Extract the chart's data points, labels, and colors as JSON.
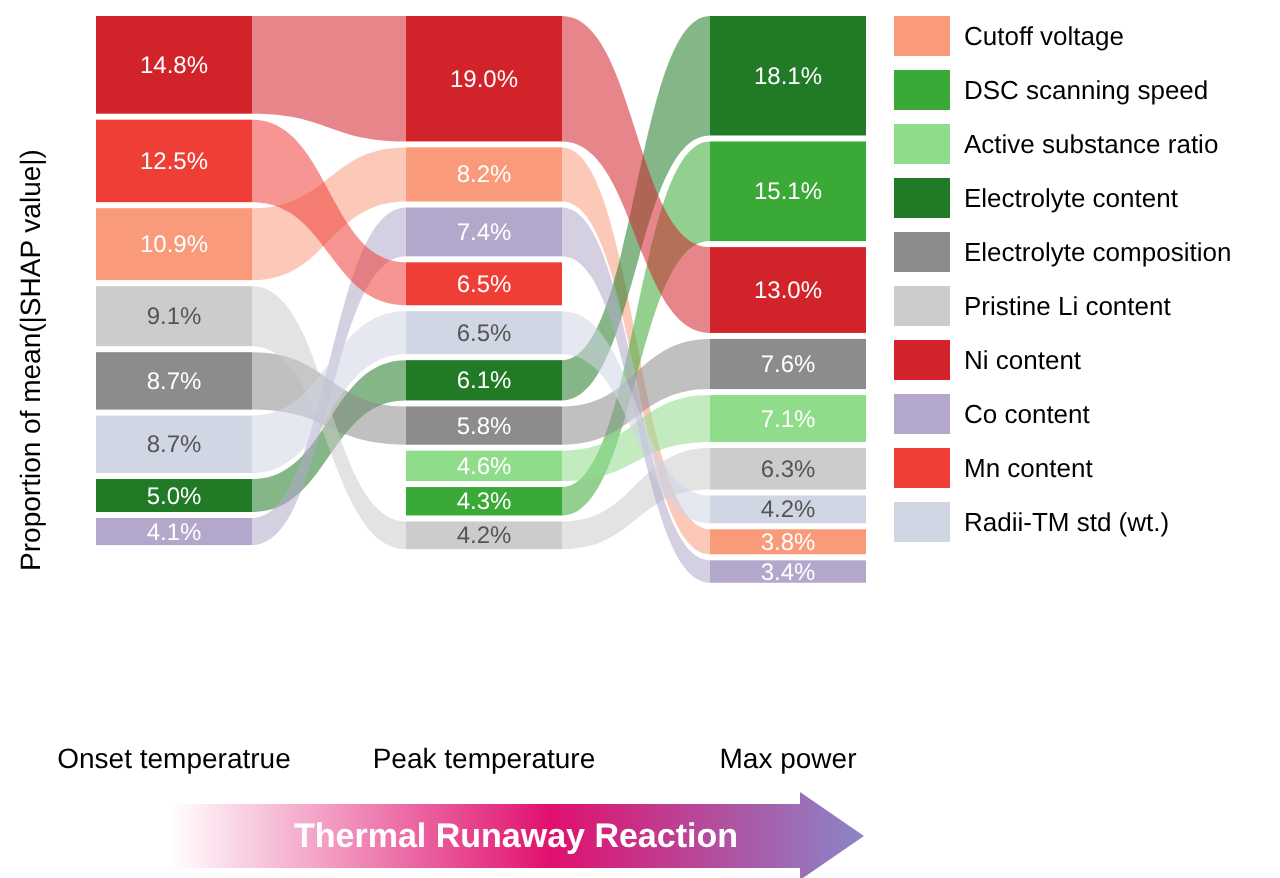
{
  "chart_data": {
    "type": "other",
    "ylabel": "Proportion of mean(|SHAP value|)",
    "xlabel": "Thermal Runaway Reaction",
    "legend": "right",
    "categories": [
      "Onset temperatrue",
      "Peak temperature",
      "Max power"
    ],
    "series": [
      {
        "name": "Cutoff voltage",
        "color": "#f99b7b",
        "values": [
          10.9,
          8.2,
          3.8
        ],
        "value_labels": [
          "10.9%",
          "8.2%",
          "3.8%"
        ]
      },
      {
        "name": "DSC scanning speed",
        "color": "#3aa935",
        "values": [
          null,
          4.3,
          15.1
        ],
        "value_labels": [
          null,
          "4.3%",
          "15.1%"
        ]
      },
      {
        "name": "Active substance ratio",
        "color": "#8fdd8a",
        "values": [
          null,
          4.6,
          7.1
        ],
        "value_labels": [
          null,
          "4.6%",
          "7.1%"
        ]
      },
      {
        "name": "Electrolyte content",
        "color": "#217a26",
        "values": [
          5.0,
          6.1,
          18.1
        ],
        "value_labels": [
          "5.0%",
          "6.1%",
          "18.1%"
        ]
      },
      {
        "name": "Electrolyte composition",
        "color": "#8c8c8c",
        "values": [
          8.7,
          5.8,
          7.6
        ],
        "value_labels": [
          "8.7%",
          "5.8%",
          "7.6%"
        ]
      },
      {
        "name": "Pristine Li content",
        "color": "#cccccc",
        "values": [
          9.1,
          4.2,
          6.3
        ],
        "value_labels": [
          "9.1%",
          "4.2%",
          "6.3%"
        ]
      },
      {
        "name": "Ni content",
        "color": "#d2232a",
        "values": [
          14.8,
          19.0,
          13.0
        ],
        "value_labels": [
          "14.8%",
          "19.0%",
          "13.0%"
        ]
      },
      {
        "name": "Co content",
        "color": "#b3a7cb",
        "values": [
          4.1,
          7.4,
          3.4
        ],
        "value_labels": [
          "4.1%",
          "7.4%",
          "3.4%"
        ]
      },
      {
        "name": "Mn content",
        "color": "#ef3e36",
        "values": [
          12.5,
          6.5,
          null
        ],
        "value_labels": [
          "12.5%",
          "6.5%",
          null
        ]
      },
      {
        "name": "Radii-TM std (wt.)",
        "color": "#d0d6e4",
        "values": [
          8.7,
          6.5,
          4.2
        ],
        "value_labels": [
          "8.7%",
          "6.5%",
          "4.2%"
        ]
      }
    ]
  }
}
